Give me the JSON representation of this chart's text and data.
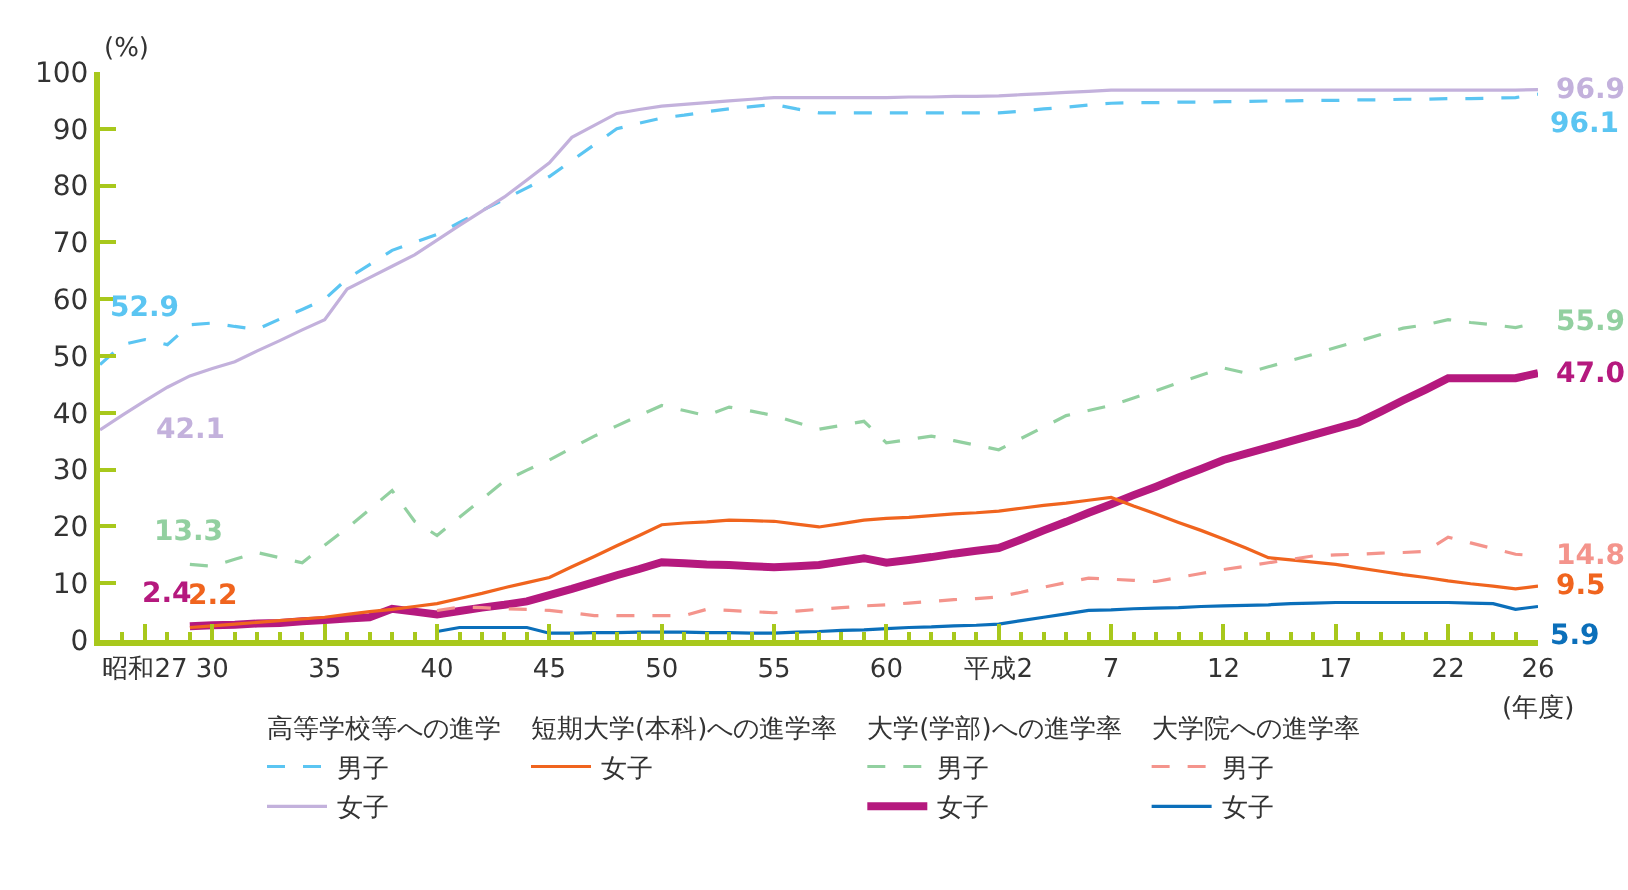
{
  "chart_data": {
    "type": "line",
    "ylabel": "(%)",
    "xlabel": "(年度)",
    "ylim": [
      0,
      100
    ],
    "yticks": [
      0,
      10,
      20,
      30,
      40,
      50,
      60,
      70,
      80,
      90,
      100
    ],
    "categories": [
      null,
      null,
      "昭和27",
      null,
      null,
      "30",
      null,
      null,
      null,
      null,
      "35",
      null,
      null,
      null,
      null,
      "40",
      null,
      null,
      null,
      null,
      "45",
      null,
      null,
      null,
      null,
      "50",
      null,
      null,
      null,
      null,
      "55",
      null,
      null,
      null,
      null,
      "60",
      null,
      null,
      null,
      null,
      "平成2",
      null,
      null,
      null,
      null,
      "7",
      null,
      null,
      null,
      null,
      "12",
      null,
      null,
      null,
      null,
      "17",
      null,
      null,
      null,
      null,
      "22",
      null,
      null,
      null,
      "26"
    ],
    "legend": "bottom",
    "annotations": [
      "高等学校等への進学",
      "短期大学(本科)への進学率",
      "大学(学部)への進学率",
      "大学院への進学率"
    ],
    "series": [
      {
        "name": "男子",
        "color": "#5bc5f2",
        "line_style": "dashed",
        "values": [
          48.5,
          52,
          52.9,
          52,
          55.5,
          55.8,
          55.2,
          54.7,
          56.5,
          58.2,
          60,
          63.6,
          66.1,
          68.6,
          70,
          71.4,
          73.5,
          75.6,
          77.6,
          79.6,
          81.6,
          84.4,
          87.2,
          90,
          91,
          91.9,
          92.4,
          93,
          93.5,
          93.9,
          94.3,
          93.5,
          92.8,
          92.8,
          92.8,
          92.8,
          92.8,
          92.8,
          92.8,
          92.8,
          92.8,
          93.1,
          93.5,
          93.8,
          94.2,
          94.5,
          94.6,
          94.6,
          94.7,
          94.7,
          94.8,
          94.8,
          94.9,
          94.9,
          95,
          95,
          95.1,
          95.1,
          95.2,
          95.2,
          95.3,
          95.3,
          95.4,
          95.5,
          96.1
        ],
        "value_labels": [
          null,
          null,
          "52.9",
          null,
          null,
          null,
          null,
          null,
          null,
          null,
          null,
          null,
          null,
          null,
          null,
          null,
          null,
          null,
          null,
          null,
          null,
          null,
          null,
          null,
          null,
          null,
          null,
          null,
          null,
          null,
          null,
          null,
          null,
          null,
          null,
          null,
          null,
          null,
          null,
          null,
          null,
          null,
          null,
          null,
          null,
          null,
          null,
          null,
          null,
          null,
          null,
          null,
          null,
          null,
          null,
          null,
          null,
          null,
          null,
          null,
          null,
          null,
          null,
          null,
          "96.1"
        ]
      },
      {
        "name": "女子",
        "color": "#c3b1dc",
        "line_style": "solid",
        "values": [
          37,
          39.6,
          42.1,
          44.5,
          46.5,
          47.8,
          49,
          50.9,
          52.7,
          54.6,
          56.4,
          61.8,
          63.8,
          65.8,
          67.8,
          70.4,
          73,
          75.5,
          78,
          81,
          84,
          88.5,
          90.6,
          92.7,
          93.4,
          94,
          94.3,
          94.6,
          94.9,
          95.2,
          95.5,
          95.5,
          95.5,
          95.5,
          95.5,
          95.5,
          95.6,
          95.6,
          95.7,
          95.7,
          95.8,
          96,
          96.2,
          96.4,
          96.6,
          96.8,
          96.8,
          96.8,
          96.8,
          96.8,
          96.8,
          96.8,
          96.8,
          96.8,
          96.8,
          96.8,
          96.8,
          96.8,
          96.8,
          96.8,
          96.8,
          96.8,
          96.8,
          96.8,
          96.9
        ],
        "value_labels": [
          null,
          null,
          "42.1",
          null,
          null,
          null,
          null,
          null,
          null,
          null,
          null,
          null,
          null,
          null,
          null,
          null,
          null,
          null,
          null,
          null,
          null,
          null,
          null,
          null,
          null,
          null,
          null,
          null,
          null,
          null,
          null,
          null,
          null,
          null,
          null,
          null,
          null,
          null,
          null,
          null,
          null,
          null,
          null,
          null,
          null,
          null,
          null,
          null,
          null,
          null,
          null,
          null,
          null,
          null,
          null,
          null,
          null,
          null,
          null,
          null,
          null,
          null,
          null,
          null,
          "96.9"
        ]
      },
      {
        "name": "女子",
        "color": "#f0641e",
        "line_style": "solid",
        "values": [
          null,
          null,
          null,
          null,
          2.2,
          2.5,
          2.8,
          3.1,
          3.4,
          3.7,
          4,
          4.5,
          5,
          5.4,
          5.9,
          6.4,
          7.3,
          8.2,
          9.2,
          10.1,
          11,
          12.9,
          14.7,
          16.6,
          18.4,
          20.3,
          20.6,
          20.8,
          21.1,
          21,
          20.9,
          20.4,
          19.9,
          20.5,
          21.1,
          21.4,
          21.6,
          21.9,
          22.2,
          22.4,
          22.7,
          23.2,
          23.7,
          24.1,
          24.6,
          25.1,
          23.6,
          22.2,
          20.7,
          19.3,
          17.8,
          16.2,
          14.5,
          14.1,
          13.7,
          13.3,
          12.7,
          12.1,
          11.5,
          11,
          10.4,
          9.9,
          9.5,
          9,
          9.5
        ],
        "value_labels": [
          null,
          null,
          null,
          null,
          "2.2",
          null,
          null,
          null,
          null,
          null,
          null,
          null,
          null,
          null,
          null,
          null,
          null,
          null,
          null,
          null,
          null,
          null,
          null,
          null,
          null,
          null,
          null,
          null,
          null,
          null,
          null,
          null,
          null,
          null,
          null,
          null,
          null,
          null,
          null,
          null,
          null,
          null,
          null,
          null,
          null,
          null,
          null,
          null,
          null,
          null,
          null,
          null,
          null,
          null,
          null,
          null,
          null,
          null,
          null,
          null,
          null,
          null,
          null,
          null,
          "9.5"
        ]
      },
      {
        "name": "男子",
        "color": "#92d0a0",
        "line_style": "dashed",
        "values": [
          null,
          null,
          null,
          null,
          13.3,
          13,
          14.2,
          15.4,
          14.5,
          13.6,
          16.7,
          19.7,
          23,
          26.3,
          20.9,
          18.4,
          21.6,
          24.8,
          28,
          29.9,
          31.7,
          33.8,
          35.9,
          37.7,
          39.5,
          41.3,
          40.4,
          39.5,
          41,
          40.3,
          39.5,
          38.3,
          37.1,
          37.8,
          38.5,
          34.7,
          35.3,
          35.9,
          35.1,
          34.3,
          33.5,
          35.5,
          37.5,
          39.5,
          40.4,
          41.3,
          42.6,
          43.9,
          45.3,
          46.6,
          47.9,
          47,
          48.1,
          49.2,
          50.3,
          51.5,
          52.6,
          53.8,
          54.9,
          55.5,
          56.4,
          55.9,
          55.5,
          55,
          55.9
        ],
        "value_labels": [
          null,
          null,
          null,
          null,
          "13.3",
          null,
          null,
          null,
          null,
          null,
          null,
          null,
          null,
          null,
          null,
          null,
          null,
          null,
          null,
          null,
          null,
          null,
          null,
          null,
          null,
          null,
          null,
          null,
          null,
          null,
          null,
          null,
          null,
          null,
          null,
          null,
          null,
          null,
          null,
          null,
          null,
          null,
          null,
          null,
          null,
          null,
          null,
          null,
          null,
          null,
          null,
          null,
          null,
          null,
          null,
          null,
          null,
          null,
          null,
          null,
          null,
          null,
          null,
          null,
          "55.9"
        ]
      },
      {
        "name": "女子",
        "color": "#b5197e",
        "line_style": "solid",
        "values": [
          null,
          null,
          null,
          null,
          2.4,
          2.6,
          2.7,
          2.9,
          3,
          3.3,
          3.5,
          3.8,
          4,
          5.5,
          5,
          4.5,
          5.1,
          5.7,
          6.2,
          6.8,
          7.9,
          9,
          10.2,
          11.4,
          12.5,
          13.7,
          13.5,
          13.3,
          13.2,
          13,
          12.8,
          13,
          13.2,
          13.8,
          14.4,
          13.6,
          14.1,
          14.6,
          15.2,
          15.7,
          16.2,
          17.7,
          19.3,
          20.8,
          22.4,
          23.9,
          25.5,
          27,
          28.6,
          30.1,
          31.7,
          32.8,
          33.9,
          35,
          36.1,
          37.2,
          38.3,
          40.2,
          42.2,
          44.1,
          46.1,
          46.1,
          46.1,
          46.1,
          47.0
        ],
        "value_labels": [
          null,
          null,
          null,
          null,
          "2.4",
          null,
          null,
          null,
          null,
          null,
          null,
          null,
          null,
          null,
          null,
          null,
          null,
          null,
          null,
          null,
          null,
          null,
          null,
          null,
          null,
          null,
          null,
          null,
          null,
          null,
          null,
          null,
          null,
          null,
          null,
          null,
          null,
          null,
          null,
          null,
          null,
          null,
          null,
          null,
          null,
          null,
          null,
          null,
          null,
          null,
          null,
          null,
          null,
          null,
          null,
          null,
          null,
          null,
          null,
          null,
          null,
          null,
          null,
          null,
          "47.0"
        ]
      },
      {
        "name": "男子",
        "color": "#f4948c",
        "line_style": "dashed",
        "values": [
          null,
          null,
          null,
          null,
          null,
          null,
          null,
          null,
          null,
          null,
          null,
          null,
          null,
          null,
          null,
          5.2,
          5.8,
          5.7,
          5.5,
          5.4,
          5.2,
          4.8,
          4.3,
          4.3,
          4.3,
          4.3,
          4.3,
          5.4,
          5.2,
          5,
          4.8,
          5.1,
          5.4,
          5.7,
          6,
          6.2,
          6.5,
          6.8,
          7.1,
          7.3,
          7.6,
          8.4,
          9.3,
          10.1,
          10.9,
          10.7,
          10.5,
          10.3,
          11,
          11.7,
          12.4,
          13,
          13.6,
          14.2,
          14.8,
          15,
          15.1,
          15.3,
          15.4,
          15.6,
          18.1,
          17.1,
          16.1,
          15.1,
          14.8
        ],
        "value_labels": [
          null,
          null,
          null,
          null,
          null,
          null,
          null,
          null,
          null,
          null,
          null,
          null,
          null,
          null,
          null,
          null,
          null,
          null,
          null,
          null,
          null,
          null,
          null,
          null,
          null,
          null,
          null,
          null,
          null,
          null,
          null,
          null,
          null,
          null,
          null,
          null,
          null,
          null,
          null,
          null,
          null,
          null,
          null,
          null,
          null,
          null,
          null,
          null,
          null,
          null,
          null,
          null,
          null,
          null,
          null,
          null,
          null,
          null,
          null,
          null,
          null,
          null,
          null,
          null,
          "14.8"
        ]
      },
      {
        "name": "女子",
        "color": "#0b6fba",
        "line_style": "solid",
        "values": [
          null,
          null,
          null,
          null,
          null,
          null,
          null,
          null,
          null,
          null,
          null,
          null,
          null,
          null,
          null,
          1.5,
          2.2,
          2.2,
          2.2,
          2.2,
          1.2,
          1.2,
          1.3,
          1.3,
          1.4,
          1.4,
          1.4,
          1.3,
          1.3,
          1.2,
          1.2,
          1.4,
          1.5,
          1.7,
          1.8,
          2,
          2.2,
          2.3,
          2.5,
          2.6,
          2.8,
          3.4,
          4,
          4.6,
          5.2,
          5.3,
          5.5,
          5.6,
          5.7,
          5.9,
          6,
          6.1,
          6.2,
          6.4,
          6.5,
          6.6,
          6.6,
          6.6,
          6.6,
          6.6,
          6.6,
          6.5,
          6.4,
          5.4,
          5.9
        ],
        "value_labels": [
          null,
          null,
          null,
          null,
          null,
          null,
          null,
          null,
          null,
          null,
          null,
          null,
          null,
          null,
          null,
          null,
          null,
          null,
          null,
          null,
          null,
          null,
          null,
          null,
          null,
          null,
          null,
          null,
          null,
          null,
          null,
          null,
          null,
          null,
          null,
          null,
          null,
          null,
          null,
          null,
          null,
          null,
          null,
          null,
          null,
          null,
          null,
          null,
          null,
          null,
          null,
          null,
          null,
          null,
          null,
          null,
          null,
          null,
          null,
          null,
          null,
          null,
          null,
          null,
          "5.9"
        ]
      }
    ]
  }
}
